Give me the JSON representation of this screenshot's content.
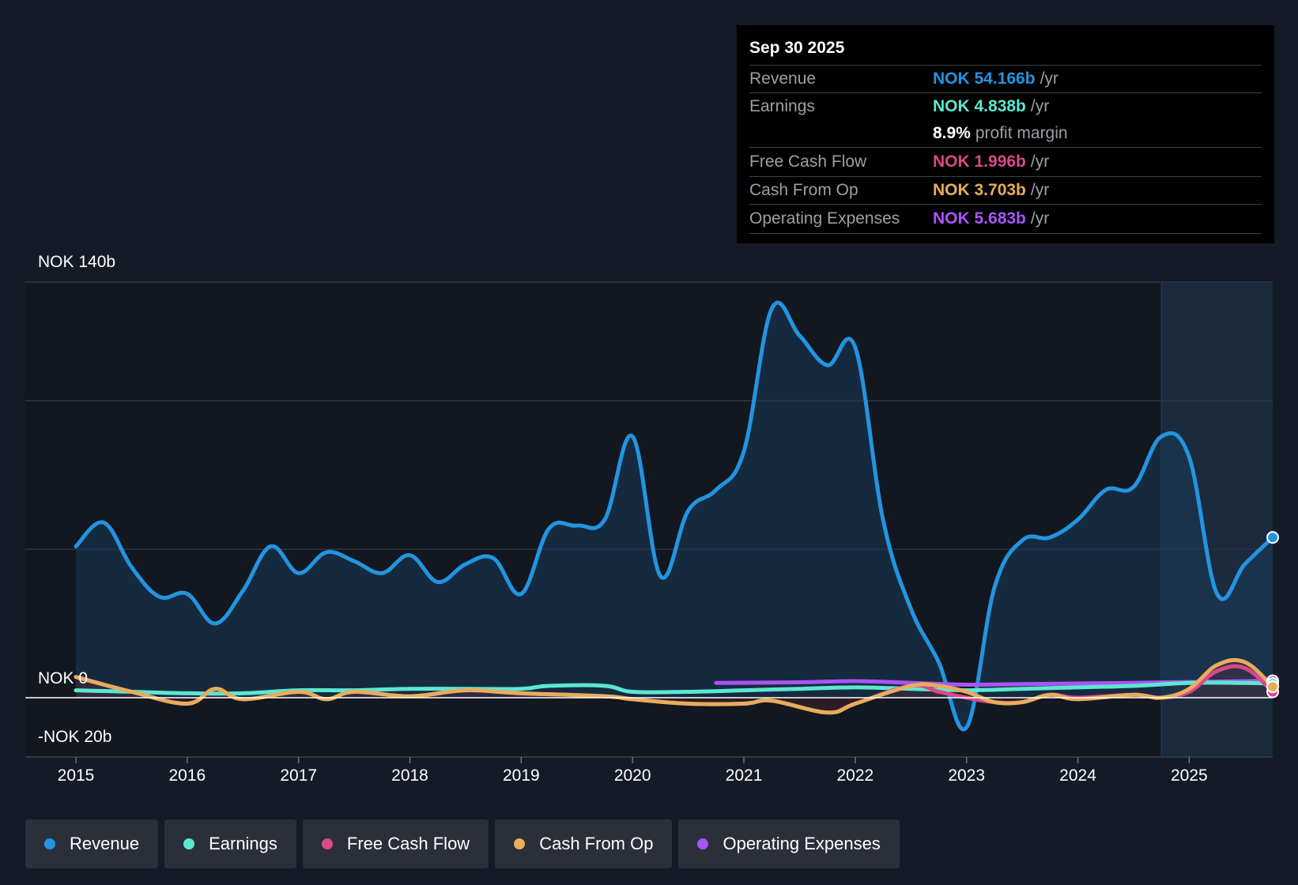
{
  "tooltip": {
    "date": "Sep 30 2025",
    "rows": [
      {
        "label": "Revenue",
        "value": "NOK 54.166b",
        "unit": "/yr",
        "color": "#2394e0"
      },
      {
        "label": "Earnings",
        "value": "NOK 4.838b",
        "unit": "/yr",
        "color": "#5ce8d0"
      },
      {
        "label": "",
        "value": "8.9%",
        "unit": "profit margin",
        "color": "#ffffff"
      },
      {
        "label": "Free Cash Flow",
        "value": "NOK 1.996b",
        "unit": "/yr",
        "color": "#d9488a"
      },
      {
        "label": "Cash From Op",
        "value": "NOK 3.703b",
        "unit": "/yr",
        "color": "#e8ad5c"
      },
      {
        "label": "Operating Expenses",
        "value": "NOK 5.683b",
        "unit": "/yr",
        "color": "#a855f7"
      }
    ]
  },
  "legend": [
    {
      "label": "Revenue",
      "color": "#2394e0"
    },
    {
      "label": "Earnings",
      "color": "#5ce8d0"
    },
    {
      "label": "Free Cash Flow",
      "color": "#d9488a"
    },
    {
      "label": "Cash From Op",
      "color": "#e8ad5c"
    },
    {
      "label": "Operating Expenses",
      "color": "#a855f7"
    }
  ],
  "chart_data": {
    "type": "line",
    "title": "",
    "y_labels": {
      "top": "NOK 140b",
      "zero": "NOK 0",
      "bottom": "-NOK 20b"
    },
    "ylim": [
      -20,
      140
    ],
    "xlim": [
      2015,
      2025.75
    ],
    "x_ticks": [
      "2015",
      "2016",
      "2017",
      "2018",
      "2019",
      "2020",
      "2021",
      "2022",
      "2023",
      "2024",
      "2025"
    ],
    "forecast_start": 2024.75,
    "series": [
      {
        "name": "Revenue",
        "color": "#2394e0",
        "x": [
          2015,
          2015.25,
          2015.5,
          2015.75,
          2016,
          2016.25,
          2016.5,
          2016.75,
          2017,
          2017.25,
          2017.5,
          2017.75,
          2018,
          2018.25,
          2018.5,
          2018.75,
          2019,
          2019.25,
          2019.5,
          2019.75,
          2020,
          2020.25,
          2020.5,
          2020.75,
          2021,
          2021.25,
          2021.5,
          2021.75,
          2022,
          2022.25,
          2022.5,
          2022.75,
          2023,
          2023.25,
          2023.5,
          2023.75,
          2024,
          2024.25,
          2024.5,
          2024.75,
          2025,
          2025.25,
          2025.5,
          2025.75
        ],
        "y": [
          51,
          59,
          44,
          34,
          35,
          25,
          36,
          51,
          42,
          49,
          46,
          42,
          48,
          39,
          45,
          47,
          35,
          57,
          58,
          60,
          88,
          41,
          63,
          70,
          83,
          131,
          122,
          112,
          118,
          60,
          30,
          12,
          -10,
          37,
          53,
          54,
          60,
          70,
          71,
          88,
          81,
          35,
          45,
          54
        ]
      },
      {
        "name": "Earnings",
        "color": "#5ce8d0",
        "x": [
          2015,
          2015.5,
          2016,
          2016.5,
          2017,
          2017.5,
          2018,
          2018.5,
          2019,
          2019.25,
          2019.75,
          2020,
          2020.5,
          2021,
          2021.5,
          2022,
          2022.5,
          2023,
          2023.5,
          2024,
          2024.5,
          2025,
          2025.5,
          2025.75
        ],
        "y": [
          2.5,
          2,
          1.5,
          1.5,
          2.5,
          2.5,
          3,
          3,
          3,
          4,
          4,
          2,
          2,
          2.5,
          3,
          3.5,
          3,
          2.5,
          3,
          3.5,
          4,
          5,
          5,
          4.8
        ]
      },
      {
        "name": "Free Cash Flow",
        "color": "#d9488a",
        "x": [
          2015,
          2015.5,
          2016,
          2016.25,
          2016.5,
          2017,
          2017.25,
          2017.5,
          2018,
          2018.5,
          2019,
          2019.75,
          2020,
          2020.5,
          2021,
          2021.25,
          2021.75,
          2022,
          2022.5,
          2022.75,
          2023,
          2023.25,
          2023.5,
          2023.75,
          2024,
          2024.5,
          2024.75,
          2025,
          2025.25,
          2025.5,
          2025.75
        ],
        "y": [
          7,
          2,
          -2,
          3,
          -0.5,
          2,
          -0.5,
          2,
          0.5,
          2.5,
          1.5,
          0.5,
          -0.5,
          -2,
          -2,
          -1,
          -5,
          -2,
          4,
          2,
          0,
          -1.5,
          -1.5,
          1,
          0,
          1,
          0,
          2,
          9,
          10,
          2
        ]
      },
      {
        "name": "Cash From Op",
        "color": "#e8ad5c",
        "x": [
          2015,
          2015.5,
          2016,
          2016.25,
          2016.5,
          2017,
          2017.25,
          2017.5,
          2018,
          2018.5,
          2019,
          2019.75,
          2020,
          2020.5,
          2021,
          2021.25,
          2021.75,
          2022,
          2022.5,
          2022.75,
          2023,
          2023.25,
          2023.5,
          2023.75,
          2024,
          2024.5,
          2024.75,
          2025,
          2025.25,
          2025.5,
          2025.75
        ],
        "y": [
          7,
          2,
          -2,
          3,
          -0.5,
          2,
          -0.5,
          2,
          0.5,
          2.5,
          1.5,
          0.5,
          -0.5,
          -2,
          -2,
          -1,
          -5,
          -2,
          4,
          4,
          2,
          -1.5,
          -1.5,
          1,
          -0.5,
          1,
          0,
          3,
          11,
          12,
          3.7
        ]
      },
      {
        "name": "Operating Expenses",
        "color": "#a855f7",
        "x": [
          2020.75,
          2021.5,
          2022,
          2022.5,
          2023,
          2023.5,
          2024,
          2024.5,
          2025,
          2025.5,
          2025.75
        ],
        "y": [
          5,
          5.2,
          5.6,
          5,
          4.4,
          4.6,
          4.8,
          5,
          5.3,
          5.6,
          5.7
        ]
      }
    ]
  }
}
